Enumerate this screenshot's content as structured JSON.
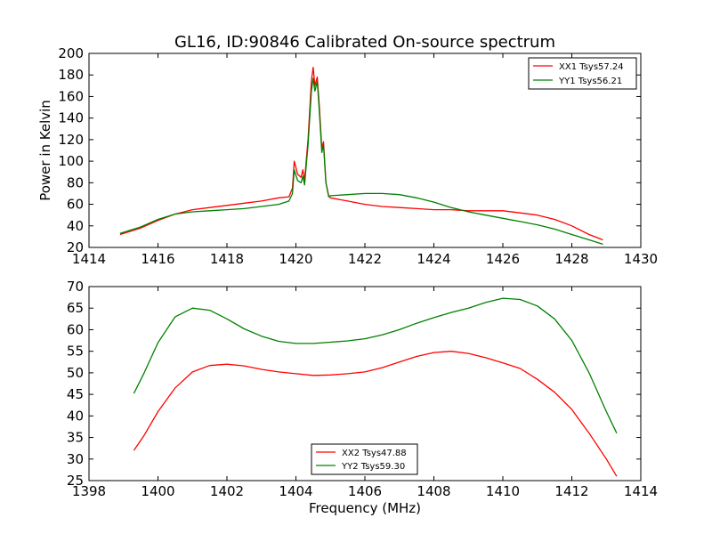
{
  "chart_data": [
    {
      "type": "line",
      "title": "GL16, ID:90846 Calibrated On-source spectrum",
      "xlabel": "",
      "ylabel": "Power in Kelvin",
      "xlim": [
        1414,
        1430
      ],
      "ylim": [
        20,
        200
      ],
      "xticks": [
        "1414",
        "1416",
        "1418",
        "1420",
        "1422",
        "1424",
        "1426",
        "1428",
        "1430"
      ],
      "yticks": [
        "20",
        "40",
        "60",
        "80",
        "100",
        "120",
        "140",
        "160",
        "180",
        "200"
      ],
      "grid": false,
      "legend_position": "top-right",
      "series": [
        {
          "name": "XX1 Tsys57.24",
          "color": "#ff0000",
          "points": [
            [
              1414.9,
              32
            ],
            [
              1415.5,
              38
            ],
            [
              1416,
              45
            ],
            [
              1416.5,
              51
            ],
            [
              1417,
              55
            ],
            [
              1417.5,
              57
            ],
            [
              1418,
              59
            ],
            [
              1418.5,
              61
            ],
            [
              1419,
              63
            ],
            [
              1419.5,
              66
            ],
            [
              1419.8,
              67
            ],
            [
              1419.9,
              75
            ],
            [
              1419.95,
              100
            ],
            [
              1420.05,
              88
            ],
            [
              1420.15,
              85
            ],
            [
              1420.2,
              92
            ],
            [
              1420.25,
              82
            ],
            [
              1420.35,
              120
            ],
            [
              1420.45,
              175
            ],
            [
              1420.5,
              187
            ],
            [
              1420.55,
              170
            ],
            [
              1420.62,
              178
            ],
            [
              1420.68,
              150
            ],
            [
              1420.75,
              112
            ],
            [
              1420.8,
              118
            ],
            [
              1420.87,
              80
            ],
            [
              1420.95,
              68
            ],
            [
              1421,
              66
            ],
            [
              1421.5,
              63
            ],
            [
              1422,
              60
            ],
            [
              1422.5,
              58
            ],
            [
              1423,
              57
            ],
            [
              1423.5,
              56
            ],
            [
              1424,
              55
            ],
            [
              1424.5,
              55
            ],
            [
              1425,
              54
            ],
            [
              1425.5,
              54
            ],
            [
              1426,
              54
            ],
            [
              1426.5,
              52
            ],
            [
              1427,
              50
            ],
            [
              1427.5,
              46
            ],
            [
              1428,
              40
            ],
            [
              1428.5,
              32
            ],
            [
              1428.9,
              27
            ]
          ]
        },
        {
          "name": "YY1 Tsys56.21",
          "color": "#008000",
          "points": [
            [
              1414.9,
              33
            ],
            [
              1415.5,
              39
            ],
            [
              1416,
              46
            ],
            [
              1416.5,
              51
            ],
            [
              1417,
              53
            ],
            [
              1417.5,
              54
            ],
            [
              1418,
              55
            ],
            [
              1418.5,
              56
            ],
            [
              1419,
              58
            ],
            [
              1419.5,
              60
            ],
            [
              1419.8,
              63
            ],
            [
              1419.9,
              70
            ],
            [
              1419.95,
              92
            ],
            [
              1420.05,
              82
            ],
            [
              1420.15,
              80
            ],
            [
              1420.2,
              86
            ],
            [
              1420.25,
              78
            ],
            [
              1420.35,
              115
            ],
            [
              1420.45,
              165
            ],
            [
              1420.5,
              177
            ],
            [
              1420.55,
              165
            ],
            [
              1420.62,
              174
            ],
            [
              1420.68,
              145
            ],
            [
              1420.75,
              108
            ],
            [
              1420.8,
              115
            ],
            [
              1420.87,
              80
            ],
            [
              1420.95,
              67
            ],
            [
              1421,
              68
            ],
            [
              1421.5,
              69
            ],
            [
              1422,
              70
            ],
            [
              1422.5,
              70
            ],
            [
              1423,
              69
            ],
            [
              1423.5,
              66
            ],
            [
              1424,
              62
            ],
            [
              1424.5,
              57
            ],
            [
              1425,
              53
            ],
            [
              1425.5,
              50
            ],
            [
              1426,
              47
            ],
            [
              1426.5,
              44
            ],
            [
              1427,
              41
            ],
            [
              1427.5,
              37
            ],
            [
              1428,
              32
            ],
            [
              1428.5,
              27
            ],
            [
              1428.9,
              23
            ]
          ]
        }
      ]
    },
    {
      "type": "line",
      "title": "",
      "xlabel": "Frequency (MHz)",
      "ylabel": "",
      "xlim": [
        1398,
        1414
      ],
      "ylim": [
        25,
        70
      ],
      "xticks": [
        "1398",
        "1400",
        "1402",
        "1404",
        "1406",
        "1408",
        "1410",
        "1412",
        "1414"
      ],
      "yticks": [
        "25",
        "30",
        "35",
        "40",
        "45",
        "50",
        "55",
        "60",
        "65",
        "70"
      ],
      "grid": false,
      "legend_position": "bottom-center",
      "series": [
        {
          "name": "XX2 Tsys47.88",
          "color": "#ff0000",
          "points": [
            [
              1399.3,
              32
            ],
            [
              1399.6,
              35.5
            ],
            [
              1400,
              41
            ],
            [
              1400.5,
              46.5
            ],
            [
              1401,
              50.2
            ],
            [
              1401.5,
              51.7
            ],
            [
              1402,
              52
            ],
            [
              1402.5,
              51.6
            ],
            [
              1403,
              50.8
            ],
            [
              1403.5,
              50.2
            ],
            [
              1404,
              49.8
            ],
            [
              1404.5,
              49.4
            ],
            [
              1405,
              49.5
            ],
            [
              1405.5,
              49.8
            ],
            [
              1406,
              50.2
            ],
            [
              1406.5,
              51.2
            ],
            [
              1407,
              52.5
            ],
            [
              1407.5,
              53.8
            ],
            [
              1408,
              54.7
            ],
            [
              1408.5,
              55
            ],
            [
              1409,
              54.5
            ],
            [
              1409.5,
              53.5
            ],
            [
              1410,
              52.3
            ],
            [
              1410.5,
              51
            ],
            [
              1411,
              48.5
            ],
            [
              1411.5,
              45.5
            ],
            [
              1412,
              41.5
            ],
            [
              1412.5,
              36
            ],
            [
              1413,
              30
            ],
            [
              1413.3,
              26
            ]
          ]
        },
        {
          "name": "YY2 Tsys59.30",
          "color": "#008000",
          "points": [
            [
              1399.3,
              45.2
            ],
            [
              1399.6,
              50
            ],
            [
              1400,
              57
            ],
            [
              1400.5,
              63
            ],
            [
              1401,
              65
            ],
            [
              1401.5,
              64.5
            ],
            [
              1402,
              62.5
            ],
            [
              1402.5,
              60.2
            ],
            [
              1403,
              58.5
            ],
            [
              1403.5,
              57.3
            ],
            [
              1404,
              56.8
            ],
            [
              1404.5,
              56.8
            ],
            [
              1405,
              57.1
            ],
            [
              1405.5,
              57.4
            ],
            [
              1406,
              57.9
            ],
            [
              1406.5,
              58.8
            ],
            [
              1407,
              60
            ],
            [
              1407.5,
              61.5
            ],
            [
              1408,
              62.8
            ],
            [
              1408.5,
              64
            ],
            [
              1409,
              65
            ],
            [
              1409.5,
              66.3
            ],
            [
              1410,
              67.3
            ],
            [
              1410.5,
              67
            ],
            [
              1411,
              65.5
            ],
            [
              1411.5,
              62.5
            ],
            [
              1412,
              57.5
            ],
            [
              1412.5,
              50
            ],
            [
              1413,
              41
            ],
            [
              1413.3,
              36
            ]
          ]
        }
      ]
    }
  ]
}
